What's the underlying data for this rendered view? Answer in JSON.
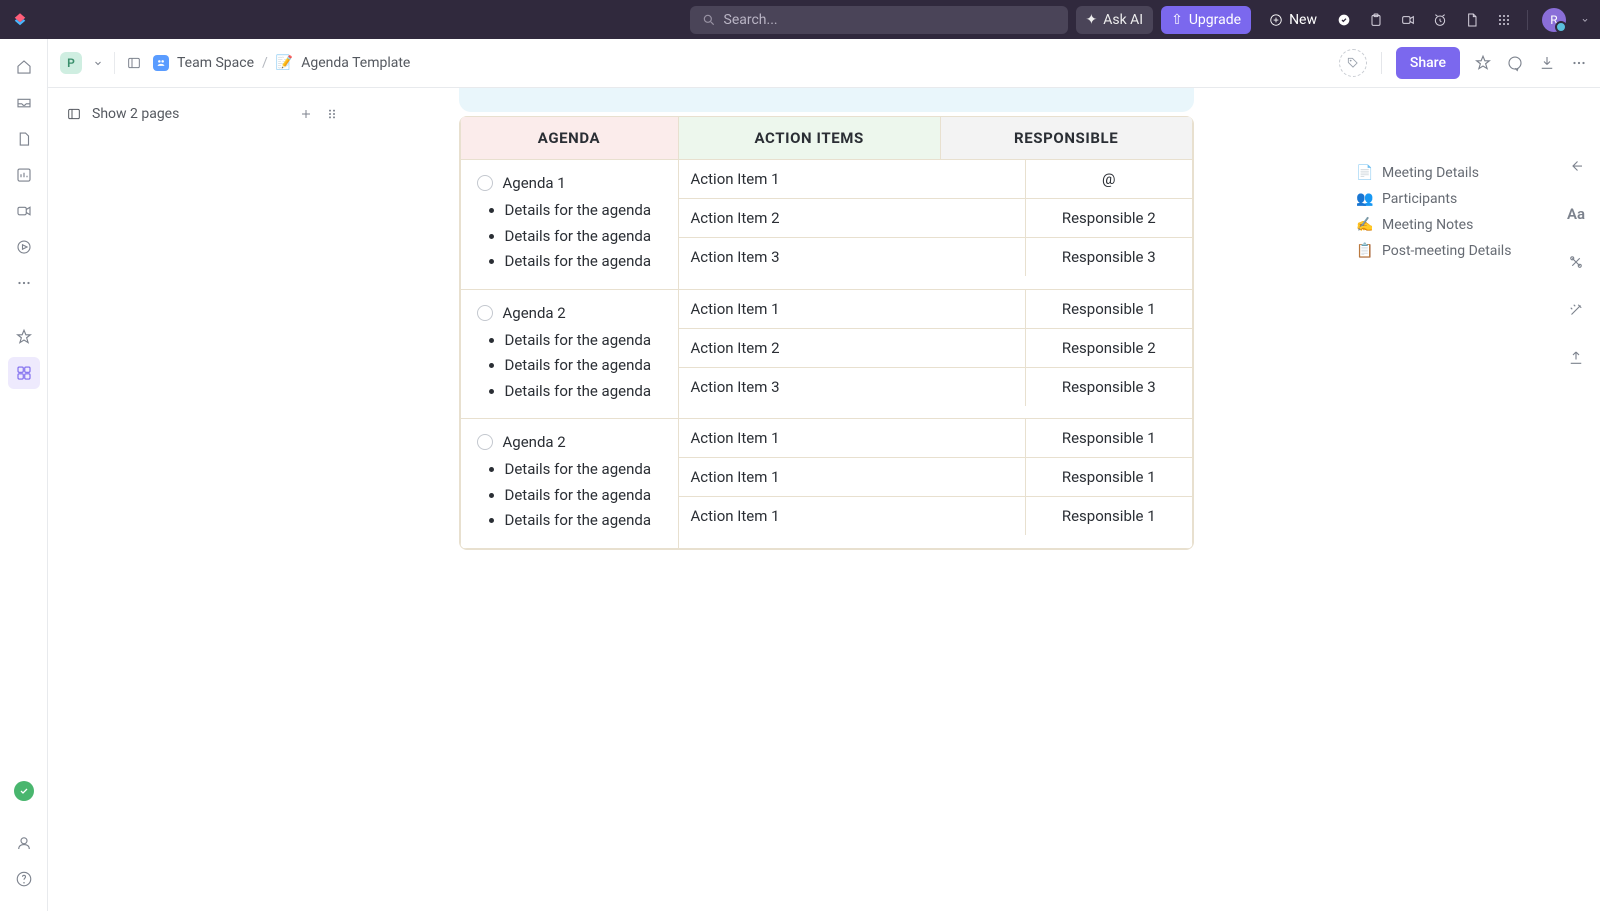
{
  "topbar": {
    "search_placeholder": "Search...",
    "ask_ai_label": "Ask AI",
    "upgrade_label": "Upgrade",
    "new_label": "New",
    "avatar_letter": "R"
  },
  "toolbar": {
    "workspace_letter": "P",
    "breadcrumb_space": "Team Space",
    "breadcrumb_doc_emoji": "📝",
    "breadcrumb_doc": "Agenda Template",
    "share_label": "Share"
  },
  "pages": {
    "show_label": "Show 2 pages"
  },
  "columns": {
    "agenda": "AGENDA",
    "actions": "ACTION ITEMS",
    "responsible": "RESPONSIBLE",
    "header_colors": {
      "agenda": "#fbeceb",
      "actions": "#edf7ed",
      "responsible": "#f3f3f3"
    }
  },
  "rows": [
    {
      "title": "Agenda 1",
      "details": [
        "Details for the agen­da",
        "Details for the agen­da",
        "Details for the agen­da"
      ],
      "items": [
        {
          "action": "Action Item 1",
          "responsible": "@"
        },
        {
          "action": "Action Item 2",
          "responsible": "Responsible 2"
        },
        {
          "action": "Action Item 3",
          "responsible": "Responsible 3"
        }
      ]
    },
    {
      "title": "Agenda 2",
      "details": [
        "Details for the agen­da",
        "Details for the agen­da",
        "Details for the agen­da"
      ],
      "items": [
        {
          "action": "Action Item 1",
          "responsible": "Responsible 1"
        },
        {
          "action": "Action Item 2",
          "responsible": "Responsible 2"
        },
        {
          "action": "Action Item 3",
          "responsible": "Responsible 3"
        }
      ]
    },
    {
      "title": "Agenda 2",
      "details": [
        "Details for the agen­da",
        "Details for the agen­da",
        "Details for the agen­da"
      ],
      "items": [
        {
          "action": "Action Item 1",
          "responsible": "Responsible 1"
        },
        {
          "action": "Action Item 1",
          "responsible": "Responsible 1"
        },
        {
          "action": "Action Item 1",
          "responsible": "Responsible 1"
        }
      ]
    }
  ],
  "outline": [
    {
      "emoji": "📄",
      "label": "Meeting Details"
    },
    {
      "emoji": "👥",
      "label": "Participants"
    },
    {
      "emoji": "✍️",
      "label": "Meeting Notes"
    },
    {
      "emoji": "📋",
      "label": "Post-meeting Details"
    }
  ]
}
